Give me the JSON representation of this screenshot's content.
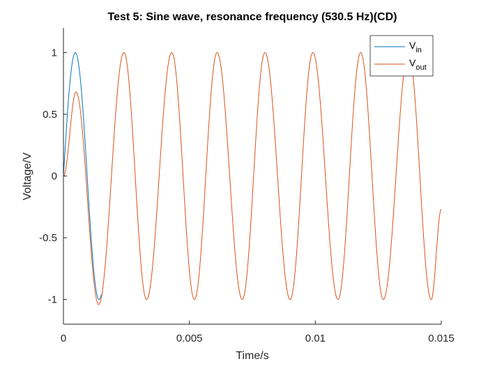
{
  "chart_data": {
    "type": "line",
    "title": "Test 5: Sine wave, resonance frequency (530.5 Hz)(CD)",
    "xlabel": "Time/s",
    "ylabel": "Voltage/V",
    "xlim": [
      0,
      0.015
    ],
    "ylim": [
      -1.2,
      1.2
    ],
    "xticks": [
      0,
      0.005,
      0.01,
      0.015
    ],
    "xtick_labels": [
      "0",
      "0.005",
      "0.01",
      "0.015"
    ],
    "yticks": [
      -1,
      -0.5,
      0,
      0.5,
      1
    ],
    "ytick_labels": [
      "-1",
      "-0.5",
      "0",
      "0.5",
      "1"
    ],
    "grid": false,
    "legend_position": "top-right",
    "frequency_hz": 530.5,
    "series": [
      {
        "name": "V",
        "name_subscript": "in",
        "color": "#0072BD",
        "description": "sin(2*pi*530.5*t), shown up to t=0.0015 s",
        "x": [
          0,
          0.0001,
          0.0002,
          0.0003,
          0.0004,
          0.0005,
          0.0006,
          0.0007,
          0.0008,
          0.0009,
          0.001,
          0.0011,
          0.0012,
          0.0013,
          0.0014,
          0.0015
        ],
        "y": [
          0,
          0.33,
          0.62,
          0.85,
          0.98,
          0.99,
          0.89,
          0.69,
          0.41,
          0.09,
          -0.24,
          -0.55,
          -0.81,
          -0.96,
          -1.0,
          -0.93
        ]
      },
      {
        "name": "V",
        "name_subscript": "out",
        "color": "#D95319",
        "description": "transient response settling to steady-state sine",
        "x": [
          0,
          0.0005,
          0.0014,
          0.0024,
          0.0033,
          0.0043,
          0.0052,
          0.0061,
          0.0071,
          0.008,
          0.009,
          0.0099,
          0.0109,
          0.0118,
          0.0127,
          0.0137,
          0.0146,
          0.015
        ],
        "y": [
          0,
          0.68,
          -1.04,
          1.0,
          -1.0,
          1.0,
          -1.0,
          1.0,
          -1.0,
          1.0,
          -1.0,
          1.0,
          -1.0,
          1.0,
          -1.0,
          1.0,
          -1.0,
          -0.27
        ]
      }
    ]
  }
}
